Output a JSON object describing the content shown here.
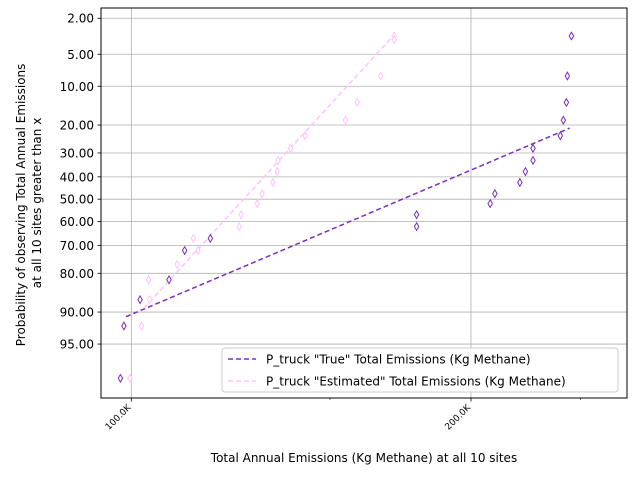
{
  "chart_data": {
    "type": "scatter",
    "xlabel": "Total Annual Emissions (Kg Methane) at all 10 sites",
    "ylabel_lines": [
      "Probability of observing Total Annual Emissions",
      "at all 10 sites greater than x"
    ],
    "x_scale": "log",
    "y_scale": "normal-probability (percent exceeding)",
    "xlim": [
      94000,
      275000
    ],
    "ylim_percent": [
      98.8,
      1.5
    ],
    "x_major_ticks": [
      {
        "value": 100000,
        "label": "100.0K"
      },
      {
        "value": 200000,
        "label": "200.0K"
      }
    ],
    "x_minor_ticks": [
      150000,
      250000
    ],
    "y_ticks": [
      {
        "value": 2,
        "label": "2.00"
      },
      {
        "value": 5,
        "label": "5.00"
      },
      {
        "value": 10,
        "label": "10.00"
      },
      {
        "value": 20,
        "label": "20.00"
      },
      {
        "value": 30,
        "label": "30.00"
      },
      {
        "value": 40,
        "label": "40.00"
      },
      {
        "value": 50,
        "label": "50.00"
      },
      {
        "value": 60,
        "label": "60.00"
      },
      {
        "value": 70,
        "label": "70.00"
      },
      {
        "value": 80,
        "label": "80.00"
      },
      {
        "value": 90,
        "label": "90.00"
      },
      {
        "value": 95,
        "label": "95.00"
      }
    ],
    "grid": true,
    "legend_position": "lower-right",
    "series": [
      {
        "name": "P_truck \"True\" Total Emissions (Kg Methane)",
        "color": "#7b2cbf",
        "marker": "thin_diamond",
        "points": [
          {
            "x": 97800,
            "y": 97.9
          },
          {
            "x": 98500,
            "y": 92.5
          },
          {
            "x": 101800,
            "y": 87.3
          },
          {
            "x": 108000,
            "y": 82.0
          },
          {
            "x": 111500,
            "y": 72.0
          },
          {
            "x": 117500,
            "y": 67.2
          },
          {
            "x": 179000,
            "y": 57.0
          },
          {
            "x": 179000,
            "y": 62.2
          },
          {
            "x": 208000,
            "y": 52.0
          },
          {
            "x": 210000,
            "y": 47.5
          },
          {
            "x": 221000,
            "y": 42.5
          },
          {
            "x": 223500,
            "y": 37.7
          },
          {
            "x": 227000,
            "y": 33.0
          },
          {
            "x": 227000,
            "y": 28.2
          },
          {
            "x": 240000,
            "y": 23.6
          },
          {
            "x": 241500,
            "y": 18.5
          },
          {
            "x": 243000,
            "y": 13.6
          },
          {
            "x": 243500,
            "y": 8.1
          },
          {
            "x": 245500,
            "y": 3.2
          }
        ],
        "fit_line": [
          {
            "x": 98900,
            "y": 90.9
          },
          {
            "x": 244600,
            "y": 21.0
          }
        ]
      },
      {
        "name": "P_truck \"Estimated\" Total Emissions (Kg Methane)",
        "color": "#ffc2ff",
        "marker": "thin_diamond",
        "points": [
          {
            "x": 99700,
            "y": 97.9
          },
          {
            "x": 102100,
            "y": 92.5
          },
          {
            "x": 103600,
            "y": 82.0
          },
          {
            "x": 103800,
            "y": 87.3
          },
          {
            "x": 109800,
            "y": 77.0
          },
          {
            "x": 113500,
            "y": 67.2
          },
          {
            "x": 114600,
            "y": 72.0
          },
          {
            "x": 124600,
            "y": 62.2
          },
          {
            "x": 125100,
            "y": 57.0
          },
          {
            "x": 129300,
            "y": 52.0
          },
          {
            "x": 130600,
            "y": 47.5
          },
          {
            "x": 133500,
            "y": 42.5
          },
          {
            "x": 134700,
            "y": 37.7
          },
          {
            "x": 134900,
            "y": 33.0
          },
          {
            "x": 138400,
            "y": 28.2
          },
          {
            "x": 142600,
            "y": 23.6
          },
          {
            "x": 154800,
            "y": 18.5
          },
          {
            "x": 158600,
            "y": 13.6
          },
          {
            "x": 166400,
            "y": 8.1
          },
          {
            "x": 171000,
            "y": 3.2
          },
          {
            "x": 171000,
            "y": 3.5
          }
        ],
        "fit_line": [
          {
            "x": 102600,
            "y": 89.2
          },
          {
            "x": 171000,
            "y": 3.1
          }
        ]
      }
    ]
  }
}
